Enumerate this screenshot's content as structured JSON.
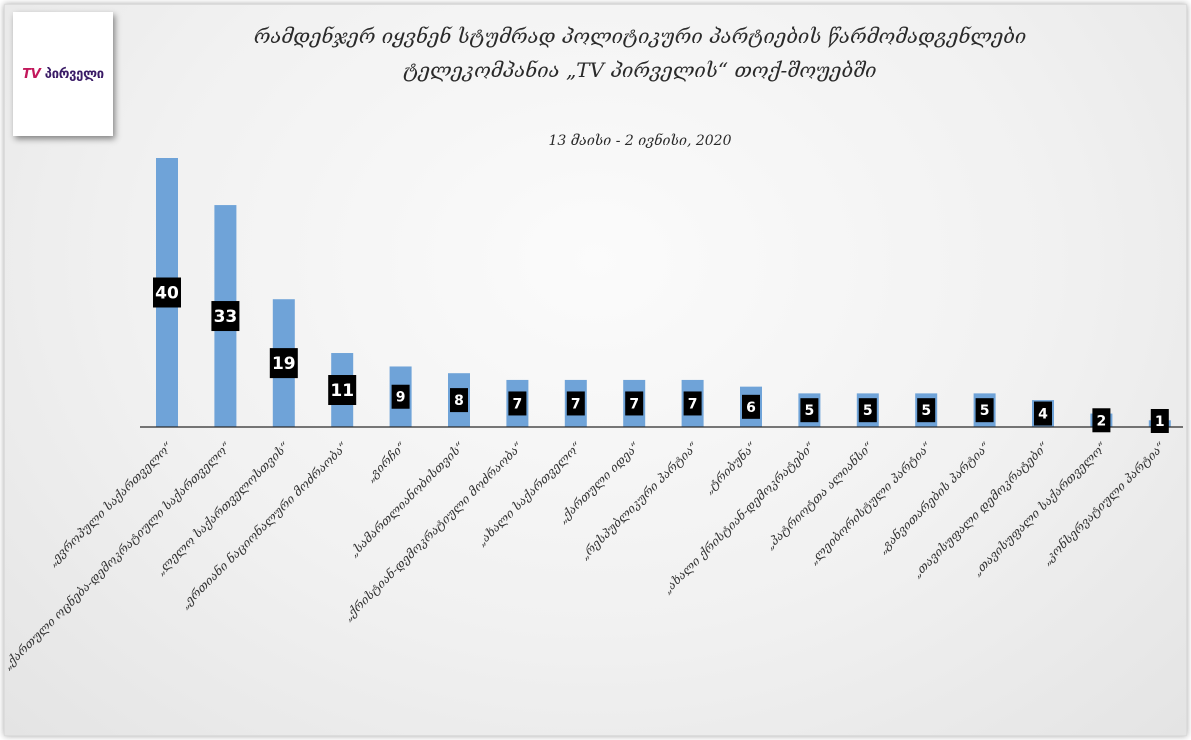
{
  "logo": {
    "tv": "TV",
    "name": "პირველი"
  },
  "chart_data": {
    "type": "bar",
    "title_line1": "რამდენჯერ იყვნენ სტუმრად პოლიტიკური პარტიების წარმომადგენლები",
    "title_line2": "ტელეკომპანია „TV პირველის“ თოქ-შოუებში",
    "subtitle": "13 მაისი - 2 ივნისი, 2020",
    "categories": [
      "„ევროპული საქართველო“",
      "„ქართული ოცნება-დემოკრატიული საქართველო“",
      "„ლელო საქართველოსთვის“",
      "„ერთიანი ნაციონალური მოძრაობა“",
      "„გირჩი“",
      "„სამართლიანობისთვის“",
      "„ქრისტიან-დემოკრატიული მოძრაობა“",
      "„ახალი საქართველო“",
      "„ქართული იდეა“",
      "„რესპუბლიკური პარტია“",
      "„ტრიბუნა“",
      "„ახალი ქრისტიან-დემოკრატები“",
      "„პატრიოტთა ალიანსი“",
      "„ლეიბორისტული პარტია“",
      "„განვითარების პარტია“",
      "„თავისუფალი დემოკრატები“",
      "„თავისუფალი საქართველო“",
      "„კონსერვატიული პარტია“"
    ],
    "values": [
      40,
      33,
      19,
      11,
      9,
      8,
      7,
      7,
      7,
      7,
      6,
      5,
      5,
      5,
      5,
      4,
      2,
      1
    ],
    "ylim": [
      0,
      42
    ],
    "grid": false,
    "legend": "none",
    "colors": {
      "bar": "#6fa3d8",
      "label_box": "#000000",
      "label_text": "#ffffff"
    }
  }
}
